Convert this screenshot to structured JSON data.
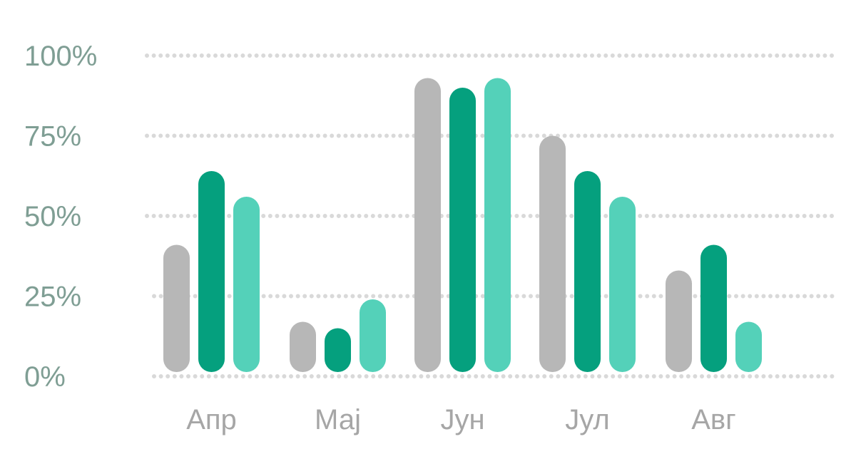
{
  "chart_data": {
    "type": "bar",
    "categories": [
      "Апр",
      "Мај",
      "Јун",
      "Јул",
      "Авг"
    ],
    "series": [
      {
        "values": [
          41,
          17,
          93,
          75,
          33
        ]
      },
      {
        "values": [
          64,
          15,
          90,
          64,
          41
        ]
      },
      {
        "values": [
          56,
          24,
          93,
          56,
          17
        ]
      }
    ],
    "y_ticks": [
      "0%",
      "25%",
      "50%",
      "75%",
      "100%"
    ],
    "y_tick_values": [
      0,
      25,
      50,
      75,
      100
    ],
    "ylim": [
      0,
      100
    ],
    "grid": true,
    "grid_style": "dotted",
    "legend": "none",
    "colors": [
      "#b7b7b7",
      "#05a07e",
      "#54d1b9"
    ],
    "grid_color": "#d9d9d9",
    "tick_label_color_y": "#7f9e94",
    "tick_label_color_x": "#a6a6a6"
  }
}
